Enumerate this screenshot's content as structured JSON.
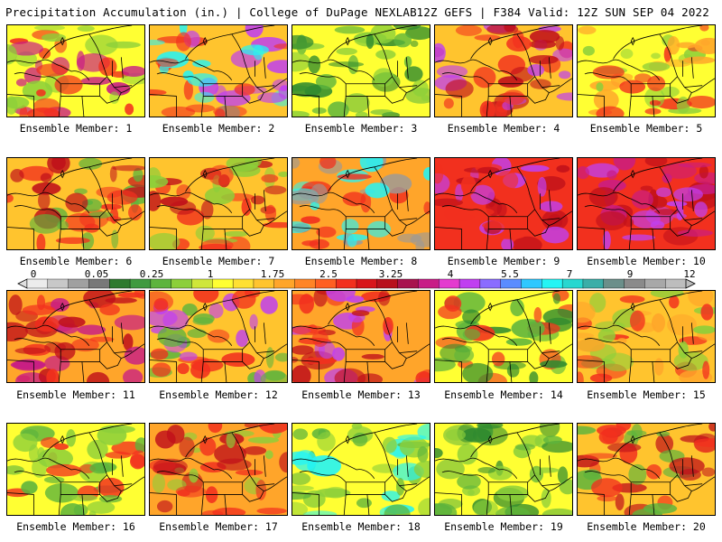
{
  "header": {
    "left": "Precipitation Accumulation (in.) | College of DuPage NEXLAB",
    "right": "12Z GEFS | F384 Valid: 12Z SUN SEP 04 2022"
  },
  "legend": {
    "labels": [
      "0",
      "0.05",
      "0.25",
      "1",
      "1.75",
      "2.5",
      "3.25",
      "4",
      "5.5",
      "7",
      "9",
      "12"
    ],
    "colors": [
      "#ececec",
      "#c8c8c8",
      "#a0a0a0",
      "#787878",
      "#2f7a2f",
      "#3f9a3f",
      "#5db43d",
      "#8ccf3a",
      "#cfe63a",
      "#ffff33",
      "#ffe033",
      "#ffc42e",
      "#ffa52a",
      "#ff8426",
      "#ff5f22",
      "#f2301e",
      "#d8141a",
      "#b80f1c",
      "#a8124e",
      "#c81c86",
      "#e43acf",
      "#c040f0",
      "#8a6cff",
      "#5a8cff",
      "#2ec8ff",
      "#25f4f4",
      "#28d7d0",
      "#3aaea8",
      "#6b8f8a",
      "#8a8a8a",
      "#a8a8a8",
      "#bdbdbd"
    ]
  },
  "map_colors": {
    "green_dark": "#2f8a2f",
    "green": "#5db43d",
    "lime": "#8ccf3a",
    "yellow": "#ffff33",
    "orange_light": "#ffc42e",
    "orange": "#ffa52a",
    "red": "#f2301e",
    "darkred": "#c0101a",
    "magenta": "#c81c86",
    "purple": "#c040f0",
    "cyan": "#25f4f4",
    "gray": "#9a9a9a"
  },
  "members": [
    {
      "label": "Ensemble Member: 1"
    },
    {
      "label": "Ensemble Member: 2"
    },
    {
      "label": "Ensemble Member: 3"
    },
    {
      "label": "Ensemble Member: 4"
    },
    {
      "label": "Ensemble Member: 5"
    },
    {
      "label": "Ensemble Member: 6"
    },
    {
      "label": "Ensemble Member: 7"
    },
    {
      "label": "Ensemble Member: 8"
    },
    {
      "label": "Ensemble Member: 9"
    },
    {
      "label": "Ensemble Member: 10"
    },
    {
      "label": "Ensemble Member: 11"
    },
    {
      "label": "Ensemble Member: 12"
    },
    {
      "label": "Ensemble Member: 13"
    },
    {
      "label": "Ensemble Member: 14"
    },
    {
      "label": "Ensemble Member: 15"
    },
    {
      "label": "Ensemble Member: 16"
    },
    {
      "label": "Ensemble Member: 17"
    },
    {
      "label": "Ensemble Member: 18"
    },
    {
      "label": "Ensemble Member: 19"
    },
    {
      "label": "Ensemble Member: 20"
    }
  ]
}
